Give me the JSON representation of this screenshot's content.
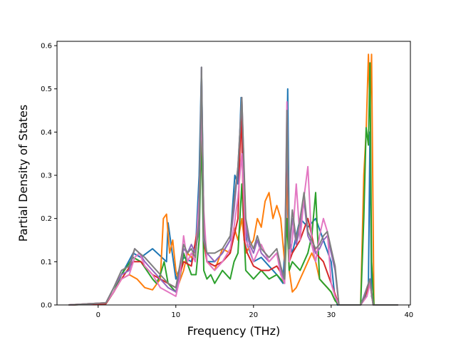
{
  "chart_data": {
    "type": "line",
    "title": "",
    "xlabel": "Frequency (THz)",
    "ylabel": "Partial Density of States",
    "xlim": [
      -5.3,
      40.2
    ],
    "ylim": [
      0.0,
      0.61
    ],
    "xticks": [
      0,
      10,
      20,
      30,
      40
    ],
    "yticks": [
      0.0,
      0.1,
      0.2,
      0.3,
      0.4,
      0.5,
      0.6
    ],
    "xtick_labels": [
      "0",
      "10",
      "20",
      "30",
      "40"
    ],
    "ytick_labels": [
      "0.0",
      "0.1",
      "0.2",
      "0.3",
      "0.4",
      "0.5",
      "0.6"
    ],
    "grid": false,
    "legend": false,
    "series": [
      {
        "color": "#1f77b4",
        "x": [
          -3.8,
          1.0,
          2.0,
          3.0,
          4.5,
          5.5,
          7.0,
          8.8,
          9.0,
          10.0,
          11.0,
          12.0,
          12.6,
          13.0,
          13.3,
          13.6,
          14.0,
          15.0,
          16.0,
          17.0,
          17.6,
          18.0,
          18.4,
          18.8,
          19.2,
          20.0,
          21.0,
          22.0,
          23.0,
          23.8,
          24.2,
          24.4,
          24.6,
          25.0,
          26.0,
          27.0,
          28.0,
          29.0,
          30.0,
          30.4,
          30.8,
          33.8,
          34.4,
          34.8,
          35.0,
          35.2,
          35.5,
          38.6
        ],
        "y": [
          0.0,
          0.003,
          0.03,
          0.07,
          0.12,
          0.11,
          0.13,
          0.1,
          0.19,
          0.06,
          0.11,
          0.1,
          0.15,
          0.3,
          0.55,
          0.2,
          0.1,
          0.1,
          0.12,
          0.15,
          0.3,
          0.28,
          0.48,
          0.2,
          0.14,
          0.1,
          0.11,
          0.09,
          0.07,
          0.05,
          0.2,
          0.5,
          0.15,
          0.12,
          0.2,
          0.18,
          0.2,
          0.15,
          0.1,
          0.03,
          0.0,
          0.0,
          0.02,
          0.05,
          0.4,
          0.02,
          0.0,
          0.0
        ]
      },
      {
        "color": "#ff7f0e",
        "x": [
          -3.8,
          1.0,
          2.0,
          3.0,
          4.0,
          5.0,
          6.0,
          7.0,
          8.0,
          8.4,
          8.8,
          9.2,
          9.6,
          10.0,
          10.4,
          11.0,
          11.5,
          12.0,
          12.6,
          13.0,
          13.3,
          13.6,
          14.0,
          15.0,
          16.0,
          17.0,
          17.5,
          18.0,
          18.5,
          19.0,
          20.0,
          20.5,
          21.0,
          21.5,
          22.0,
          22.5,
          23.0,
          23.5,
          24.0,
          24.3,
          24.6,
          25.0,
          25.5,
          26.0,
          26.5,
          27.0,
          27.5,
          28.0,
          28.5,
          29.0,
          29.5,
          30.0,
          30.5,
          31.0,
          33.8,
          34.2,
          34.5,
          34.8,
          35.0,
          35.2,
          35.5,
          38.6
        ],
        "y": [
          0.0,
          0.005,
          0.03,
          0.06,
          0.07,
          0.06,
          0.04,
          0.035,
          0.06,
          0.2,
          0.21,
          0.12,
          0.15,
          0.08,
          0.05,
          0.08,
          0.12,
          0.11,
          0.13,
          0.2,
          0.45,
          0.15,
          0.1,
          0.08,
          0.13,
          0.12,
          0.18,
          0.15,
          0.2,
          0.12,
          0.15,
          0.2,
          0.18,
          0.24,
          0.26,
          0.2,
          0.23,
          0.2,
          0.1,
          0.3,
          0.08,
          0.03,
          0.04,
          0.06,
          0.08,
          0.1,
          0.12,
          0.1,
          0.06,
          0.05,
          0.04,
          0.03,
          0.01,
          0.0,
          0.0,
          0.3,
          0.4,
          0.58,
          0.45,
          0.58,
          0.0,
          0.0
        ]
      },
      {
        "color": "#2ca02c",
        "x": [
          -3.8,
          1.0,
          2.0,
          3.0,
          4.5,
          5.5,
          7.0,
          7.5,
          8.0,
          8.5,
          9.0,
          10.0,
          10.5,
          11.0,
          12.0,
          12.6,
          13.0,
          13.3,
          13.6,
          14.0,
          14.5,
          15.0,
          16.0,
          17.0,
          17.5,
          18.0,
          18.5,
          19.0,
          20.0,
          21.0,
          22.0,
          23.0,
          24.0,
          24.3,
          24.6,
          25.0,
          25.5,
          26.0,
          26.5,
          27.0,
          27.5,
          28.0,
          28.5,
          29.0,
          29.5,
          30.0,
          30.5,
          31.0,
          33.8,
          34.2,
          34.5,
          34.8,
          35.0,
          35.2,
          35.5,
          38.6
        ],
        "y": [
          0.0,
          0.003,
          0.03,
          0.07,
          0.11,
          0.1,
          0.06,
          0.05,
          0.07,
          0.1,
          0.05,
          0.03,
          0.06,
          0.12,
          0.07,
          0.07,
          0.15,
          0.4,
          0.08,
          0.06,
          0.07,
          0.05,
          0.08,
          0.06,
          0.1,
          0.12,
          0.28,
          0.08,
          0.06,
          0.08,
          0.06,
          0.07,
          0.05,
          0.2,
          0.08,
          0.1,
          0.09,
          0.08,
          0.1,
          0.12,
          0.16,
          0.26,
          0.06,
          0.05,
          0.04,
          0.03,
          0.01,
          0.0,
          0.0,
          0.2,
          0.41,
          0.37,
          0.56,
          0.1,
          0.0,
          0.0
        ]
      },
      {
        "color": "#d62728",
        "x": [
          -3.8,
          1.0,
          2.0,
          3.0,
          4.5,
          5.5,
          7.0,
          8.0,
          9.0,
          10.0,
          11.0,
          12.0,
          13.0,
          13.3,
          13.6,
          14.0,
          15.0,
          16.0,
          17.0,
          18.0,
          18.4,
          18.8,
          19.2,
          20.0,
          21.0,
          22.0,
          23.0,
          24.0,
          24.3,
          24.6,
          25.0,
          26.0,
          27.0,
          28.0,
          29.0,
          30.0,
          31.0,
          33.8,
          34.6,
          35.0,
          35.4,
          38.6
        ],
        "y": [
          0.0,
          0.003,
          0.03,
          0.06,
          0.1,
          0.1,
          0.07,
          0.06,
          0.05,
          0.04,
          0.1,
          0.09,
          0.2,
          0.5,
          0.15,
          0.1,
          0.09,
          0.1,
          0.12,
          0.2,
          0.45,
          0.15,
          0.12,
          0.09,
          0.08,
          0.08,
          0.09,
          0.06,
          0.4,
          0.1,
          0.12,
          0.15,
          0.2,
          0.12,
          0.1,
          0.05,
          0.0,
          0.0,
          0.03,
          0.05,
          0.0,
          0.0
        ]
      },
      {
        "color": "#9467bd",
        "x": [
          -3.8,
          1.0,
          2.0,
          3.0,
          4.0,
          4.7,
          5.3,
          6.0,
          7.0,
          8.0,
          9.0,
          10.0,
          10.5,
          11.0,
          11.5,
          12.0,
          12.5,
          13.0,
          13.3,
          13.6,
          14.0,
          15.0,
          16.0,
          17.0,
          17.5,
          18.0,
          18.5,
          19.0,
          19.5,
          20.0,
          20.5,
          21.0,
          22.0,
          23.0,
          23.5,
          24.0,
          24.3,
          24.6,
          25.0,
          25.5,
          26.0,
          26.5,
          27.0,
          27.5,
          28.0,
          28.5,
          29.0,
          29.5,
          30.0,
          30.5,
          31.0,
          33.8,
          34.6,
          35.0,
          35.4,
          38.6
        ],
        "y": [
          0.0,
          0.005,
          0.04,
          0.07,
          0.08,
          0.13,
          0.12,
          0.1,
          0.08,
          0.06,
          0.04,
          0.03,
          0.08,
          0.13,
          0.12,
          0.14,
          0.12,
          0.18,
          0.55,
          0.15,
          0.12,
          0.1,
          0.12,
          0.15,
          0.22,
          0.32,
          0.48,
          0.18,
          0.14,
          0.12,
          0.15,
          0.12,
          0.1,
          0.12,
          0.08,
          0.05,
          0.42,
          0.12,
          0.2,
          0.14,
          0.18,
          0.24,
          0.16,
          0.14,
          0.12,
          0.13,
          0.15,
          0.16,
          0.12,
          0.08,
          0.0,
          0.0,
          0.04,
          0.06,
          0.0,
          0.0
        ]
      },
      {
        "color": "#e377c2",
        "x": [
          -3.8,
          1.0,
          2.0,
          3.0,
          4.0,
          4.7,
          5.3,
          6.0,
          7.0,
          8.0,
          9.0,
          10.0,
          10.5,
          11.0,
          11.5,
          12.0,
          12.5,
          13.0,
          13.3,
          13.6,
          14.0,
          15.0,
          16.0,
          17.0,
          17.5,
          18.0,
          18.5,
          19.0,
          19.5,
          20.0,
          20.5,
          21.0,
          22.0,
          23.0,
          23.5,
          24.0,
          24.3,
          24.6,
          25.0,
          25.5,
          26.0,
          26.5,
          27.0,
          27.5,
          28.0,
          28.5,
          29.0,
          29.5,
          30.0,
          30.5,
          31.0,
          33.8,
          34.6,
          35.0,
          35.4,
          38.6
        ],
        "y": [
          0.0,
          0.005,
          0.03,
          0.06,
          0.07,
          0.11,
          0.12,
          0.09,
          0.07,
          0.04,
          0.03,
          0.02,
          0.06,
          0.16,
          0.1,
          0.12,
          0.1,
          0.25,
          0.45,
          0.22,
          0.1,
          0.08,
          0.1,
          0.13,
          0.18,
          0.25,
          0.35,
          0.15,
          0.13,
          0.1,
          0.12,
          0.14,
          0.1,
          0.12,
          0.07,
          0.05,
          0.47,
          0.1,
          0.15,
          0.28,
          0.15,
          0.25,
          0.32,
          0.14,
          0.1,
          0.16,
          0.2,
          0.17,
          0.05,
          0.02,
          0.0,
          0.0,
          0.02,
          0.05,
          0.0,
          0.0
        ]
      },
      {
        "color": "#7f7f7f",
        "x": [
          -3.8,
          1.0,
          2.0,
          3.0,
          4.0,
          4.7,
          5.3,
          6.0,
          7.0,
          8.0,
          9.0,
          10.0,
          10.5,
          11.0,
          11.5,
          12.0,
          12.5,
          13.0,
          13.3,
          13.6,
          14.0,
          15.0,
          16.0,
          17.0,
          17.5,
          18.0,
          18.5,
          19.0,
          19.5,
          20.0,
          20.5,
          21.0,
          22.0,
          23.0,
          23.5,
          24.0,
          24.3,
          24.6,
          25.0,
          25.5,
          26.0,
          26.5,
          27.0,
          27.5,
          28.0,
          28.5,
          29.0,
          29.5,
          30.0,
          30.5,
          31.0,
          33.8,
          34.3,
          34.6,
          35.0,
          35.4,
          38.6
        ],
        "y": [
          0.0,
          0.005,
          0.04,
          0.08,
          0.09,
          0.13,
          0.12,
          0.11,
          0.09,
          0.07,
          0.05,
          0.04,
          0.09,
          0.14,
          0.12,
          0.13,
          0.11,
          0.2,
          0.55,
          0.16,
          0.12,
          0.12,
          0.13,
          0.16,
          0.24,
          0.32,
          0.48,
          0.2,
          0.15,
          0.13,
          0.16,
          0.13,
          0.11,
          0.13,
          0.09,
          0.06,
          0.45,
          0.13,
          0.22,
          0.15,
          0.2,
          0.26,
          0.17,
          0.15,
          0.13,
          0.14,
          0.16,
          0.17,
          0.13,
          0.09,
          0.0,
          0.0,
          0.02,
          0.04,
          0.06,
          0.0,
          0.0
        ]
      }
    ]
  }
}
